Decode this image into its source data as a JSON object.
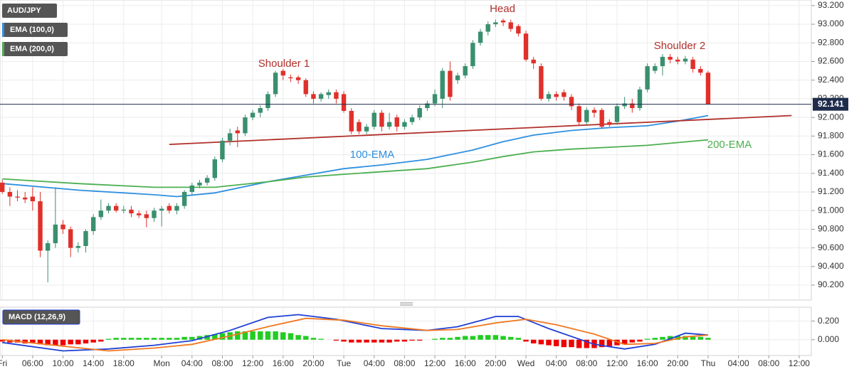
{
  "chart_data": [
    {
      "type": "candlestick",
      "title": "AUD/JPY",
      "up_color": "#3a8f6e",
      "down_color": "#e0302a",
      "xlim": [
        -0.3,
        106.6
      ],
      "ylim": [
        90.04,
        93.26
      ],
      "yticks": [
        {
          "value": 90.2,
          "label": "90.200"
        },
        {
          "value": 90.4,
          "label": "90.400"
        },
        {
          "value": 90.6,
          "label": "90.600"
        },
        {
          "value": 90.8,
          "label": "90.800"
        },
        {
          "value": 91.0,
          "label": "91.000"
        },
        {
          "value": 91.2,
          "label": "91.200"
        },
        {
          "value": 91.4,
          "label": "91.400"
        },
        {
          "value": 91.6,
          "label": "91.600"
        },
        {
          "value": 91.8,
          "label": "91.800"
        },
        {
          "value": 92.0,
          "label": "92.000"
        },
        {
          "value": 92.2,
          "label": "92.200"
        },
        {
          "value": 92.4,
          "label": "92.400"
        },
        {
          "value": 92.6,
          "label": "92.600"
        },
        {
          "value": 92.8,
          "label": "92.800"
        },
        {
          "value": 93.0,
          "label": "93.000"
        },
        {
          "value": 93.2,
          "label": "93.200"
        }
      ],
      "grid": true,
      "last_value": 92.141,
      "last_color": "#1f2d4d",
      "ohlc": [
        [
          91.3,
          91.33,
          91.18,
          91.2
        ],
        [
          91.2,
          91.25,
          91.05,
          91.15
        ],
        [
          91.15,
          91.22,
          91.1,
          91.14
        ],
        [
          91.14,
          91.2,
          91.08,
          91.12
        ],
        [
          91.15,
          91.25,
          91.0,
          91.1
        ],
        [
          91.1,
          91.2,
          90.5,
          90.57
        ],
        [
          90.57,
          90.68,
          90.23,
          90.65
        ],
        [
          90.65,
          91.25,
          90.6,
          90.85
        ],
        [
          90.85,
          90.9,
          90.75,
          90.8
        ],
        [
          90.8,
          90.83,
          90.5,
          90.6
        ],
        [
          90.6,
          90.66,
          90.55,
          90.62
        ],
        [
          90.62,
          90.8,
          90.55,
          90.78
        ],
        [
          90.78,
          90.96,
          90.74,
          90.93
        ],
        [
          90.93,
          91.12,
          90.9,
          91.0
        ],
        [
          91.0,
          91.08,
          90.97,
          91.05
        ],
        [
          91.05,
          91.08,
          90.98,
          91.0
        ],
        [
          91.0,
          91.05,
          90.97,
          91.01
        ],
        [
          91.01,
          91.05,
          90.93,
          90.97
        ],
        [
          90.97,
          91.0,
          90.92,
          90.95
        ],
        [
          90.96,
          91.0,
          90.82,
          90.92
        ],
        [
          90.92,
          91.03,
          90.88,
          91.0
        ],
        [
          91.0,
          91.05,
          90.83,
          91.02
        ],
        [
          91.05,
          91.08,
          90.97,
          91.0
        ],
        [
          91.0,
          91.08,
          90.96,
          91.05
        ],
        [
          91.05,
          91.22,
          91.02,
          91.2
        ],
        [
          91.2,
          91.3,
          91.17,
          91.27
        ],
        [
          91.27,
          91.33,
          91.24,
          91.3
        ],
        [
          91.3,
          91.38,
          91.27,
          91.35
        ],
        [
          91.35,
          91.58,
          91.32,
          91.55
        ],
        [
          91.55,
          91.78,
          91.52,
          91.75
        ],
        [
          91.75,
          91.88,
          91.7,
          91.83
        ],
        [
          91.86,
          91.9,
          91.68,
          91.83
        ],
        [
          91.83,
          92.03,
          91.8,
          92.0
        ],
        [
          92.0,
          92.08,
          91.97,
          92.05
        ],
        [
          92.05,
          92.13,
          92.0,
          92.1
        ],
        [
          92.1,
          92.28,
          92.07,
          92.25
        ],
        [
          92.25,
          92.5,
          92.22,
          92.48
        ],
        [
          92.5,
          92.52,
          92.4,
          92.45
        ],
        [
          92.43,
          92.46,
          92.38,
          92.42
        ],
        [
          92.43,
          92.45,
          92.36,
          92.4
        ],
        [
          92.4,
          92.42,
          92.22,
          92.25
        ],
        [
          92.25,
          92.28,
          92.15,
          92.2
        ],
        [
          92.2,
          92.27,
          92.17,
          92.25
        ],
        [
          92.24,
          92.3,
          92.2,
          92.27
        ],
        [
          92.27,
          92.3,
          92.15,
          92.2
        ],
        [
          92.25,
          92.28,
          92.05,
          92.07
        ],
        [
          92.07,
          92.1,
          91.82,
          91.85
        ],
        [
          91.95,
          91.98,
          91.82,
          91.85
        ],
        [
          91.85,
          91.93,
          91.82,
          91.9
        ],
        [
          91.9,
          92.08,
          91.87,
          92.05
        ],
        [
          92.05,
          92.08,
          91.85,
          91.9
        ],
        [
          91.9,
          92.05,
          91.87,
          91.95
        ],
        [
          92.0,
          92.03,
          91.85,
          91.9
        ],
        [
          91.9,
          91.98,
          91.87,
          91.95
        ],
        [
          91.95,
          92.03,
          91.92,
          92.0
        ],
        [
          92.0,
          92.13,
          91.97,
          92.1
        ],
        [
          92.1,
          92.18,
          92.07,
          92.15
        ],
        [
          92.15,
          92.3,
          92.12,
          92.25
        ],
        [
          92.2,
          92.53,
          92.1,
          92.5
        ],
        [
          92.5,
          92.6,
          92.18,
          92.22
        ],
        [
          92.4,
          92.48,
          92.36,
          92.45
        ],
        [
          92.45,
          92.58,
          92.42,
          92.55
        ],
        [
          92.55,
          92.83,
          92.52,
          92.8
        ],
        [
          92.8,
          92.95,
          92.77,
          92.92
        ],
        [
          92.92,
          93.03,
          92.88,
          93.0
        ],
        [
          93.0,
          93.05,
          92.97,
          93.02
        ],
        [
          93.04,
          93.06,
          92.98,
          93.02
        ],
        [
          93.02,
          93.05,
          92.92,
          92.95
        ],
        [
          92.98,
          93.0,
          92.87,
          92.9
        ],
        [
          92.9,
          92.93,
          92.6,
          92.62
        ],
        [
          92.62,
          92.65,
          92.52,
          92.58
        ],
        [
          92.55,
          92.58,
          92.18,
          92.2
        ],
        [
          92.2,
          92.28,
          92.17,
          92.25
        ],
        [
          92.25,
          92.28,
          92.18,
          92.22
        ],
        [
          92.27,
          92.3,
          92.18,
          92.22
        ],
        [
          92.22,
          92.25,
          92.08,
          92.12
        ],
        [
          92.12,
          92.15,
          91.92,
          91.95
        ],
        [
          91.95,
          92.11,
          91.92,
          92.08
        ],
        [
          92.08,
          92.11,
          92.0,
          92.05
        ],
        [
          92.08,
          92.1,
          91.88,
          91.9
        ],
        [
          91.95,
          91.98,
          91.9,
          91.92
        ],
        [
          91.95,
          92.15,
          91.92,
          92.12
        ],
        [
          92.12,
          92.22,
          92.09,
          92.15
        ],
        [
          92.15,
          92.2,
          92.05,
          92.1
        ],
        [
          92.1,
          92.33,
          92.07,
          92.3
        ],
        [
          92.3,
          92.58,
          92.27,
          92.55
        ],
        [
          92.5,
          92.58,
          92.47,
          92.55
        ],
        [
          92.55,
          92.68,
          92.45,
          92.65
        ],
        [
          92.65,
          92.68,
          92.58,
          92.62
        ],
        [
          92.62,
          92.65,
          92.57,
          92.6
        ],
        [
          92.6,
          92.66,
          92.57,
          92.63
        ],
        [
          92.62,
          92.65,
          92.48,
          92.52
        ],
        [
          92.52,
          92.55,
          92.45,
          92.48
        ],
        [
          92.48,
          92.5,
          92.14,
          92.141
        ]
      ],
      "series": [
        {
          "name": "EMA (100,0)",
          "color": "#2e8fe0",
          "x": [
            0,
            10,
            20,
            23,
            28,
            35,
            40,
            45,
            50,
            56,
            62,
            66,
            70,
            75,
            80,
            85,
            89,
            93
          ],
          "values": [
            91.29,
            91.22,
            91.17,
            91.15,
            91.19,
            91.31,
            91.38,
            91.45,
            91.49,
            91.55,
            91.65,
            91.74,
            91.81,
            91.86,
            91.89,
            91.91,
            91.96,
            92.02
          ]
        },
        {
          "name": "EMA (200,0)",
          "color": "#4caf50",
          "x": [
            0,
            10,
            20,
            28,
            35,
            40,
            45,
            56,
            62,
            66,
            70,
            75,
            80,
            85,
            89,
            93
          ],
          "values": [
            91.34,
            91.29,
            91.25,
            91.25,
            91.31,
            91.36,
            91.39,
            91.45,
            91.52,
            91.58,
            91.63,
            91.66,
            91.68,
            91.7,
            91.73,
            91.76
          ]
        }
      ],
      "lines": [
        {
          "color": "#b0302a",
          "x": [
            22,
            104
          ],
          "values": [
            91.71,
            92.02
          ]
        }
      ],
      "annotations": [
        "Head",
        "Shoulder 1",
        "Shoulder 2",
        "100-EMA",
        "200-EMA"
      ]
    },
    {
      "type": "macd",
      "title": "MACD (12,26,9)",
      "xlim": [
        -0.3,
        106.6
      ],
      "ylim": [
        -0.17,
        0.35
      ],
      "yticks": [
        {
          "value": 0.0,
          "label": "0.000"
        },
        {
          "value": 0.2,
          "label": "0.200"
        }
      ],
      "grid": true,
      "xticks": [
        {
          "value": 0,
          "label": "Fri"
        },
        {
          "value": 4,
          "label": "06:00"
        },
        {
          "value": 8,
          "label": "10:00"
        },
        {
          "value": 12,
          "label": "14:00"
        },
        {
          "value": 16,
          "label": "18:00"
        },
        {
          "value": 21,
          "label": "Mon"
        },
        {
          "value": 25,
          "label": "04:00"
        },
        {
          "value": 29,
          "label": "08:00"
        },
        {
          "value": 33,
          "label": "12:00"
        },
        {
          "value": 37,
          "label": "16:00"
        },
        {
          "value": 41,
          "label": "20:00"
        },
        {
          "value": 45,
          "label": "Tue"
        },
        {
          "value": 49,
          "label": "04:00"
        },
        {
          "value": 53,
          "label": "08:00"
        },
        {
          "value": 57,
          "label": "12:00"
        },
        {
          "value": 61,
          "label": "16:00"
        },
        {
          "value": 65,
          "label": "20:00"
        },
        {
          "value": 69,
          "label": "Wed"
        },
        {
          "value": 73,
          "label": "04:00"
        },
        {
          "value": 77,
          "label": "08:00"
        },
        {
          "value": 81,
          "label": "12:00"
        },
        {
          "value": 85,
          "label": "16:00"
        },
        {
          "value": 89,
          "label": "20:00"
        },
        {
          "value": 93,
          "label": "Thu"
        },
        {
          "value": 97,
          "label": "04:00"
        },
        {
          "value": 101,
          "label": "08:00"
        },
        {
          "value": 105,
          "label": "12:00"
        }
      ],
      "histogram": {
        "up_color": "#22cc22",
        "down_color": "#ee0000",
        "values": [
          -0.02,
          -0.03,
          -0.03,
          -0.04,
          -0.04,
          -0.05,
          -0.06,
          -0.06,
          -0.06,
          -0.05,
          -0.05,
          -0.04,
          -0.03,
          -0.02,
          0.01,
          0.02,
          0.02,
          0.02,
          0.02,
          0.02,
          0.02,
          0.02,
          0.02,
          0.02,
          0.03,
          0.03,
          0.04,
          0.05,
          0.06,
          0.07,
          0.08,
          0.09,
          0.09,
          0.09,
          0.09,
          0.09,
          0.09,
          0.08,
          0.07,
          0.05,
          0.04,
          0.02,
          0.01,
          0.0,
          -0.01,
          -0.02,
          -0.03,
          -0.03,
          -0.03,
          -0.03,
          -0.03,
          -0.03,
          -0.02,
          -0.02,
          -0.01,
          -0.01,
          0.0,
          0.01,
          0.02,
          0.02,
          0.03,
          0.04,
          0.04,
          0.05,
          0.05,
          0.05,
          0.04,
          0.03,
          0.02,
          -0.02,
          -0.04,
          -0.05,
          -0.06,
          -0.07,
          -0.08,
          -0.08,
          -0.09,
          -0.09,
          -0.09,
          -0.08,
          -0.07,
          -0.06,
          -0.05,
          -0.03,
          -0.02,
          0.01,
          0.02,
          0.03,
          0.04,
          0.04,
          0.04,
          0.03,
          0.03,
          0.02
        ]
      },
      "series": [
        {
          "color": "#1f3fd6",
          "x": [
            0,
            8,
            14,
            20,
            25,
            30,
            35,
            39,
            44,
            50,
            56,
            60,
            65,
            68,
            72,
            78,
            82,
            86,
            90,
            93
          ],
          "values": [
            -0.03,
            -0.12,
            -0.1,
            -0.06,
            -0.01,
            0.1,
            0.24,
            0.27,
            0.22,
            0.12,
            0.1,
            0.14,
            0.25,
            0.25,
            0.12,
            -0.05,
            -0.1,
            -0.05,
            0.07,
            0.05
          ]
        },
        {
          "color": "#f07820",
          "x": [
            0,
            8,
            14,
            20,
            25,
            30,
            35,
            40,
            45,
            50,
            56,
            60,
            65,
            69,
            73,
            78,
            82,
            86,
            90,
            93
          ],
          "values": [
            0.0,
            -0.07,
            -0.12,
            -0.09,
            -0.05,
            0.04,
            0.14,
            0.23,
            0.21,
            0.15,
            0.1,
            0.11,
            0.18,
            0.22,
            0.16,
            0.06,
            -0.05,
            -0.04,
            0.03,
            0.05
          ]
        }
      ]
    }
  ]
}
